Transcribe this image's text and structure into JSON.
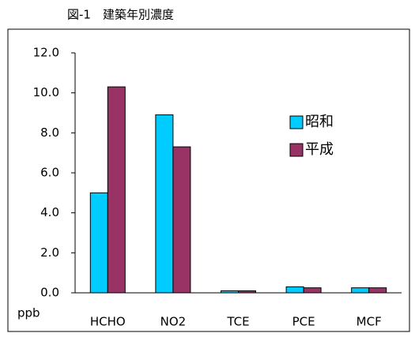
{
  "chart_data": {
    "type": "bar",
    "title": "図-1　建築年別濃度",
    "y_label": "ppb",
    "categories": [
      "HCHO",
      "NO2",
      "TCE",
      "PCE",
      "MCF"
    ],
    "series": [
      {
        "name": "昭和",
        "color": "#00ccff",
        "values": [
          5.0,
          8.9,
          0.1,
          0.3,
          0.25
        ]
      },
      {
        "name": "平成",
        "color": "#993366",
        "values": [
          10.3,
          7.3,
          0.1,
          0.25,
          0.25
        ]
      }
    ],
    "ylim": [
      0,
      12
    ],
    "yticks": [
      {
        "value": 0,
        "label": "0.0"
      },
      {
        "value": 2,
        "label": "2.0"
      },
      {
        "value": 4,
        "label": "4.0"
      },
      {
        "value": 6,
        "label": "6.0"
      },
      {
        "value": 8,
        "label": "8.0"
      },
      {
        "value": 10,
        "label": "10.0"
      },
      {
        "value": 12,
        "label": "12.0"
      }
    ],
    "grid": false,
    "legend": "right"
  }
}
